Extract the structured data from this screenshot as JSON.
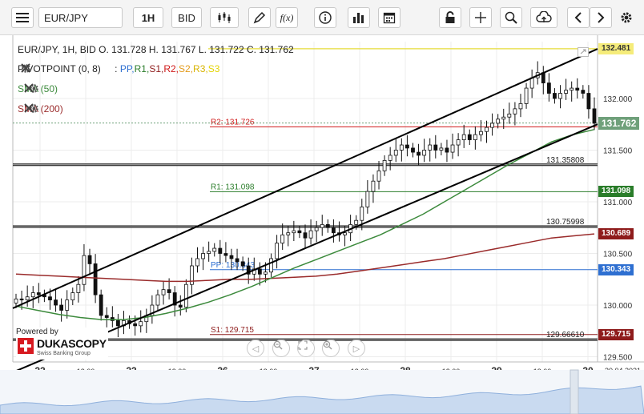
{
  "toolbar": {
    "symbol": "EUR/JPY",
    "timeframe": "1H",
    "price_type": "BID",
    "fx_label": "f(x)"
  },
  "header": {
    "ohlc": "EUR/JPY, 1H, BID   O. 131.728 H. 131.767 L. 131.722 C. 131.762"
  },
  "legend": {
    "pivot_name": "PIVOTPOINT (0, 8)",
    "pivot_sep": ":",
    "pivot_items": [
      {
        "label": "PP,",
        "color": "#2e6fd1"
      },
      {
        "label": "R1,",
        "color": "#2a7d2a"
      },
      {
        "label": "S1,",
        "color": "#8e1b1b"
      },
      {
        "label": "R2,",
        "color": "#d01a1a"
      },
      {
        "label": "S2,",
        "color": "#e39a1a"
      },
      {
        "label": "R3,",
        "color": "#d8b400"
      },
      {
        "label": "S3",
        "color": "#e4d400"
      }
    ],
    "sma50": "SMA (50)",
    "sma200": "SMA (200)"
  },
  "chart_data": {
    "type": "candlestick",
    "x_ticks": [
      "22",
      "12:00",
      "23",
      "12:00",
      "26",
      "12:00",
      "27",
      "12:00",
      "28",
      "12:00",
      "29",
      "12:00",
      "30"
    ],
    "x_end_label": "30.04.2021",
    "y_ticks": [
      "132.000",
      "131.500",
      "131.000",
      "130.500",
      "130.000",
      "129.500"
    ],
    "ylim": [
      129.45,
      132.55
    ],
    "current_price": "131.762",
    "levels": [
      {
        "label": "R2: 131.726",
        "value": 131.726,
        "color": "#d01a1a"
      },
      {
        "label": "131.35808",
        "value": 131.35808,
        "color": "#222222"
      },
      {
        "label": "R1: 131.098",
        "value": 131.098,
        "color": "#2a7d2a"
      },
      {
        "label": "130.75998",
        "value": 130.75998,
        "color": "#222222"
      },
      {
        "label": "PP: 130.343",
        "value": 130.343,
        "color": "#2e6fd1"
      },
      {
        "label": "S1: 129.715",
        "value": 129.715,
        "color": "#8e1b1b"
      },
      {
        "label": "129.66610",
        "value": 129.6661,
        "color": "#222222"
      }
    ],
    "price_tags": [
      {
        "label": "132.481",
        "value": 132.481,
        "bg": "#f5ec7a",
        "fg": "#333333"
      },
      {
        "label": "131.762",
        "value": 131.762,
        "bg": "#6fa07a",
        "fg": "#ffffff"
      },
      {
        "label": "131.098",
        "value": 131.098,
        "bg": "#2a7d2a",
        "fg": "#ffffff"
      },
      {
        "label": "130.689",
        "value": 130.689,
        "bg": "#8e1b1b",
        "fg": "#ffffff"
      },
      {
        "label": "130.343",
        "value": 130.343,
        "bg": "#2e6fd1",
        "fg": "#ffffff"
      },
      {
        "label": "129.715",
        "value": 129.715,
        "bg": "#8e1b1b",
        "fg": "#ffffff"
      }
    ],
    "closes": [
      130.06,
      130.05,
      130.08,
      130.12,
      130.1,
      130.08,
      130.05,
      130.0,
      129.95,
      130.05,
      130.12,
      130.2,
      130.48,
      130.4,
      130.1,
      129.9,
      129.88,
      129.85,
      129.8,
      129.85,
      129.82,
      129.8,
      129.84,
      129.9,
      130.0,
      130.1,
      130.15,
      130.12,
      130.0,
      129.98,
      130.2,
      130.38,
      130.45,
      130.5,
      130.52,
      130.55,
      130.5,
      130.48,
      130.45,
      130.42,
      130.38,
      130.3,
      130.35,
      130.3,
      130.32,
      130.45,
      130.6,
      130.68,
      130.7,
      130.72,
      130.7,
      130.65,
      130.72,
      130.75,
      130.78,
      130.75,
      130.7,
      130.68,
      130.7,
      130.78,
      130.82,
      130.95,
      131.1,
      131.2,
      131.3,
      131.4,
      131.45,
      131.5,
      131.55,
      131.52,
      131.48,
      131.45,
      131.5,
      131.55,
      131.5,
      131.52,
      131.48,
      131.55,
      131.6,
      131.65,
      131.6,
      131.65,
      131.68,
      131.72,
      131.76,
      131.8,
      131.82,
      131.85,
      131.9,
      131.95,
      132.1,
      132.2,
      132.25,
      132.15,
      132.05,
      132.0,
      132.05,
      132.08,
      132.1,
      132.08,
      132.05,
      131.9,
      131.76
    ],
    "sma50": [
      129.99,
      129.95,
      129.91,
      129.88,
      129.86,
      129.86,
      129.88,
      129.92,
      129.97,
      130.03,
      130.1,
      130.18,
      130.27,
      130.36,
      130.44,
      130.52,
      130.6,
      130.68,
      130.78,
      130.88,
      131.0,
      131.12,
      131.24,
      131.36,
      131.47,
      131.58,
      131.65,
      131.7
    ],
    "sma200": [
      130.3,
      130.29,
      130.28,
      130.27,
      130.26,
      130.25,
      130.24,
      130.23,
      130.23,
      130.24,
      130.25,
      130.25,
      130.26,
      130.27,
      130.28,
      130.3,
      130.33,
      130.36,
      130.39,
      130.42,
      130.45,
      130.49,
      130.53,
      130.57,
      130.61,
      130.65,
      130.67,
      130.689
    ],
    "channel_upper": [
      [
        129.97,
        132.48
      ]
    ],
    "channel_lower": [
      [
        129.35,
        131.75
      ]
    ],
    "navigator": "overview"
  },
  "branding": {
    "powered_by": "Powered by",
    "name": "DUKASCOPY",
    "sub": "Swiss Banking Group"
  }
}
